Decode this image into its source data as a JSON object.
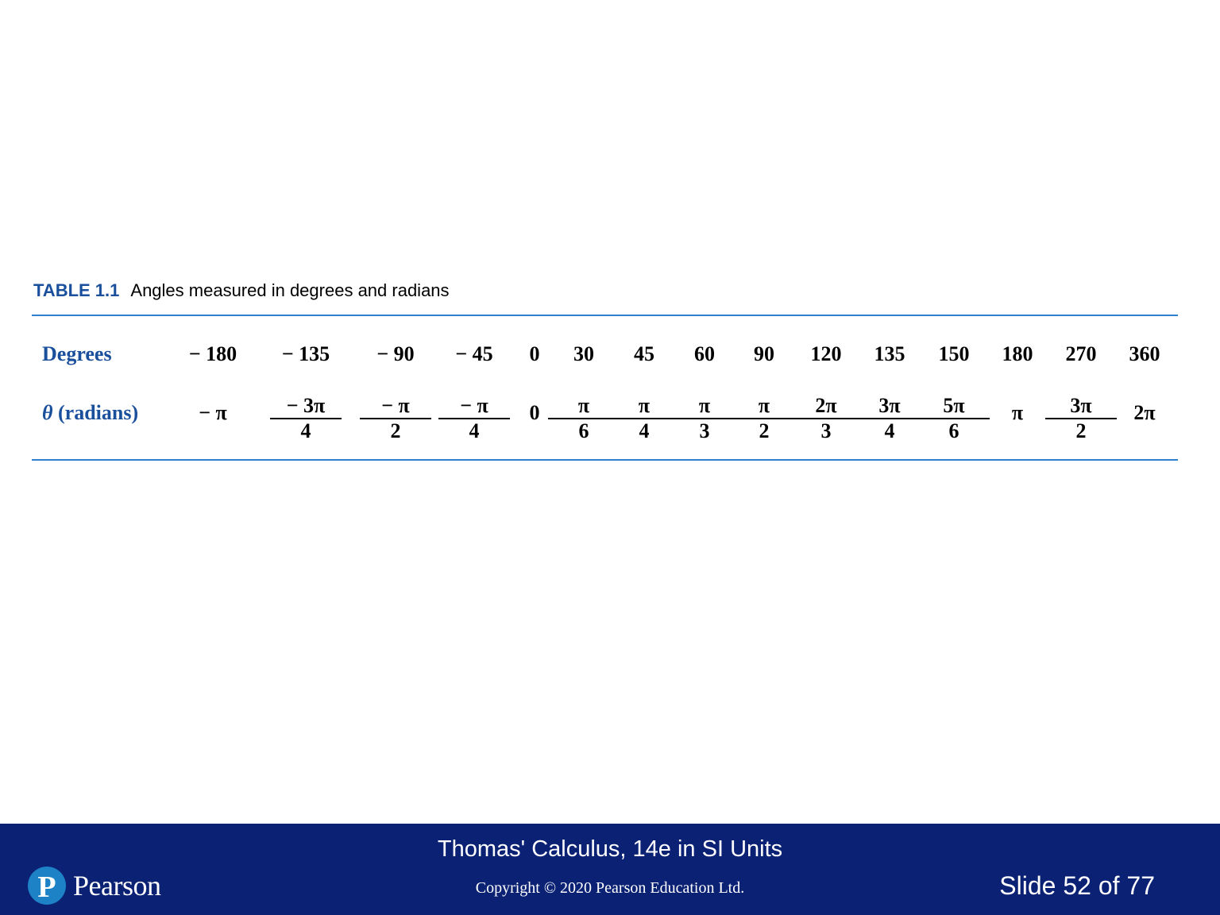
{
  "colors": {
    "accent": "#1a4f9c",
    "rule": "#2f7ed0",
    "footer_bg": "#0a2174",
    "logo_circle": "#1d83c6"
  },
  "caption": {
    "label": "TABLE 1.1",
    "text": "Angles measured in degrees and radians"
  },
  "table": {
    "row_degrees_label": "Degrees",
    "row_radians_theta": "θ",
    "row_radians_label": "(radians)",
    "degrees": [
      "− 180",
      "− 135",
      "− 90",
      "− 45",
      "0",
      "30",
      "45",
      "60",
      "90",
      "120",
      "135",
      "150",
      "180",
      "270",
      "360"
    ],
    "radians": [
      {
        "text": "− π"
      },
      {
        "num": "− 3π",
        "den": "4"
      },
      {
        "num": "− π",
        "den": "2"
      },
      {
        "num": "− π",
        "den": "4"
      },
      {
        "text": "0"
      },
      {
        "num": "π",
        "den": "6"
      },
      {
        "num": "π",
        "den": "4"
      },
      {
        "num": "π",
        "den": "3"
      },
      {
        "num": "π",
        "den": "2"
      },
      {
        "num": "2π",
        "den": "3"
      },
      {
        "num": "3π",
        "den": "4"
      },
      {
        "num": "5π",
        "den": "6"
      },
      {
        "text": "π"
      },
      {
        "num": "3π",
        "den": "2"
      },
      {
        "text": "2π"
      }
    ]
  },
  "footer": {
    "book_title": "Thomas' Calculus, 14e in SI Units",
    "copyright": "Copyright © 2020 Pearson Education Ltd.",
    "slide_counter": "Slide 52 of 77",
    "logo_word": "Pearson",
    "logo_letter": "P"
  }
}
